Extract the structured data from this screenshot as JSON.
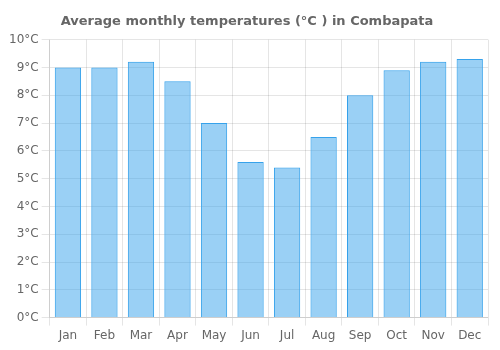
{
  "chart_data": {
    "type": "bar",
    "title": "Average monthly temperatures (°C ) in Combapata",
    "categories": [
      "Jan",
      "Feb",
      "Mar",
      "Apr",
      "May",
      "Jun",
      "Jul",
      "Aug",
      "Sep",
      "Oct",
      "Nov",
      "Dec"
    ],
    "values": [
      9.0,
      9.0,
      9.2,
      8.5,
      7.0,
      5.6,
      5.4,
      6.5,
      8.0,
      8.9,
      9.2,
      9.3
    ],
    "ylim": [
      0,
      10
    ],
    "yticks": [
      {
        "value": 0,
        "label": "0°C"
      },
      {
        "value": 1,
        "label": "1°C"
      },
      {
        "value": 2,
        "label": "2°C"
      },
      {
        "value": 3,
        "label": "3°C"
      },
      {
        "value": 4,
        "label": "4°C"
      },
      {
        "value": 5,
        "label": "5°C"
      },
      {
        "value": 6,
        "label": "6°C"
      },
      {
        "value": 7,
        "label": "7°C"
      },
      {
        "value": 8,
        "label": "8°C"
      },
      {
        "value": 9,
        "label": "9°C"
      },
      {
        "value": 10,
        "label": "10°C"
      }
    ],
    "grid": true
  }
}
